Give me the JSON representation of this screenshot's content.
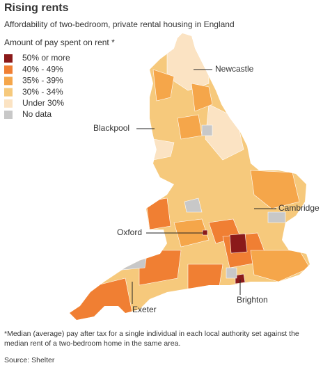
{
  "title": "Rising rents",
  "subtitle": "Affordability of two-bedroom, private rental housing in England",
  "legend": {
    "title": "Amount of pay spent on rent *",
    "items": [
      {
        "label": "50% or more",
        "color": "#8b1a1a"
      },
      {
        "label": "40% - 49%",
        "color": "#f07f33"
      },
      {
        "label": "35% - 39%",
        "color": "#f5a64a"
      },
      {
        "label": "30% - 34%",
        "color": "#f6c97c"
      },
      {
        "label": "Under 30%",
        "color": "#fbe3c3"
      },
      {
        "label": "No data",
        "color": "#c8c8c8"
      }
    ]
  },
  "places": [
    "Newcastle",
    "Blackpool",
    "Cambridge",
    "Oxford",
    "Exeter",
    "Brighton"
  ],
  "footnote": [
    "*Median (average) pay after tax for a single individual in each local authority set against the",
    "median rent of a two-bedroom home in the same area."
  ],
  "source": "Source: Shelter"
}
